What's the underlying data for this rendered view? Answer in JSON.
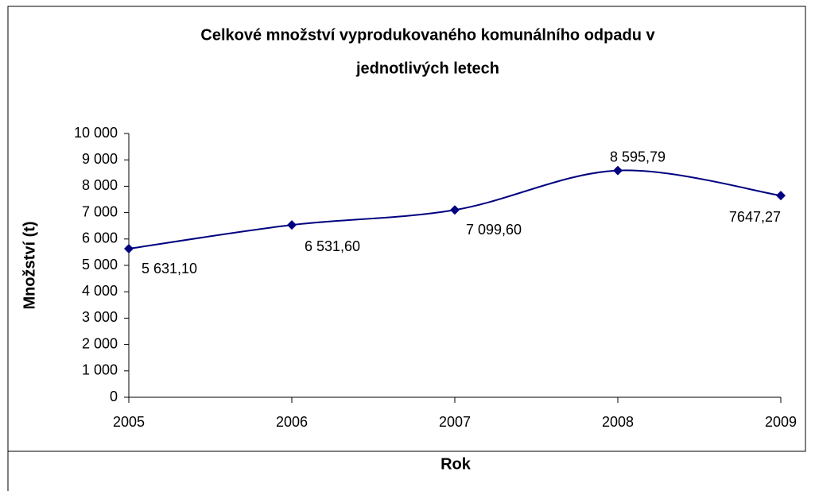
{
  "chart_data": {
    "type": "line",
    "title": "Celkové množství vyprodukovaného komunálního odpadu v",
    "subtitle": "jednotlivých letech",
    "xlabel": "Rok",
    "ylabel": "Množství (t)",
    "x": [
      2005,
      2006,
      2007,
      2008,
      2009
    ],
    "xlim": [
      2005,
      2009
    ],
    "xticks": [
      2005,
      2006,
      2007,
      2008,
      2009
    ],
    "ylim": [
      0,
      10000
    ],
    "yticks": [
      0,
      {
        "value": 1000,
        "label": "1 000"
      },
      {
        "value": 2000,
        "label": "2 000"
      },
      {
        "value": 3000,
        "label": "3 000"
      },
      {
        "value": 4000,
        "label": "4 000"
      },
      {
        "value": 5000,
        "label": "5 000"
      },
      {
        "value": 6000,
        "label": "6 000"
      },
      {
        "value": 7000,
        "label": "7 000"
      },
      {
        "value": 8000,
        "label": "8 000"
      },
      {
        "value": 9000,
        "label": "9 000"
      },
      {
        "value": 10000,
        "label": "10 000"
      }
    ],
    "series": [
      {
        "color": "#000080",
        "values": [
          5631.1,
          6531.6,
          7099.6,
          8595.79,
          7647.27
        ],
        "value_labels": [
          "5 631,10",
          "6 531,60",
          "7 099,60",
          "8 595,79",
          "7647,27"
        ]
      }
    ],
    "smooth": true
  }
}
